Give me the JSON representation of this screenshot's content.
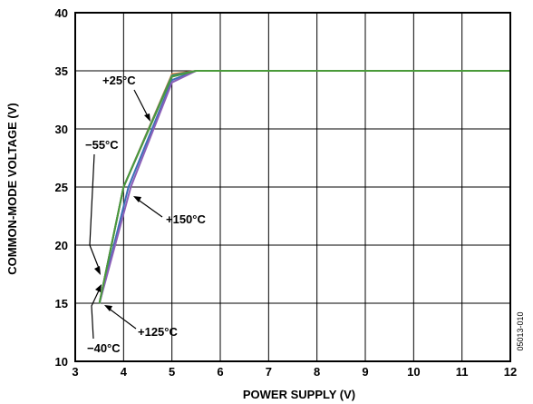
{
  "chart_data": {
    "type": "line",
    "title": "",
    "xlabel": "POWER SUPPLY (V)",
    "ylabel": "COMMON-MODE VOLTAGE (V)",
    "xlim": [
      3,
      12
    ],
    "ylim": [
      10,
      40
    ],
    "xticks": [
      "3",
      "4",
      "5",
      "6",
      "7",
      "8",
      "9",
      "10",
      "11",
      "12"
    ],
    "yticks": [
      "10",
      "15",
      "20",
      "25",
      "30",
      "35",
      "40"
    ],
    "grid": true,
    "figure_id": "05013-010",
    "series": [
      {
        "name": "+25°C",
        "color": "#e07b2a",
        "x": [
          3.5,
          4.0,
          5.0,
          5.5,
          12.0
        ],
        "y": [
          15.0,
          25.0,
          34.7,
          35.0,
          35.0
        ]
      },
      {
        "name": "−55°C",
        "color": "#d64a9a",
        "x": [
          3.5,
          4.0,
          5.0,
          5.5,
          12.0
        ],
        "y": [
          15.0,
          25.0,
          34.5,
          35.0,
          35.0
        ]
      },
      {
        "name": "−40°C",
        "color": "#2a8a9a",
        "x": [
          3.5,
          4.0,
          5.0,
          5.5,
          12.0
        ],
        "y": [
          15.0,
          25.0,
          34.6,
          35.0,
          35.0
        ]
      },
      {
        "name": "+125°C",
        "color": "#3b6fb6",
        "x": [
          3.5,
          4.1,
          5.0,
          5.5,
          12.0
        ],
        "y": [
          15.0,
          25.0,
          34.2,
          35.0,
          35.0
        ]
      },
      {
        "name": "+150°C",
        "color": "#8b5fb8",
        "x": [
          3.5,
          4.15,
          5.0,
          5.5,
          12.0
        ],
        "y": [
          15.0,
          25.0,
          34.0,
          35.0,
          35.0
        ]
      },
      {
        "name": "",
        "color": "#4a9a3a",
        "x": [
          3.5,
          4.0,
          5.0,
          5.5,
          12.0
        ],
        "y": [
          15.0,
          25.0,
          34.5,
          35.0,
          35.0
        ]
      }
    ],
    "annotations": [
      {
        "text": "+25°C",
        "point": [
          4.45,
          30.0
        ]
      },
      {
        "text": "−55°C",
        "point": [
          3.47,
          17.5
        ]
      },
      {
        "text": "+150°C",
        "point": [
          4.2,
          25.5
        ]
      },
      {
        "text": "+125°C",
        "point": [
          3.6,
          14.5
        ]
      },
      {
        "text": "−40°C",
        "point": [
          3.45,
          15.5
        ]
      }
    ]
  }
}
